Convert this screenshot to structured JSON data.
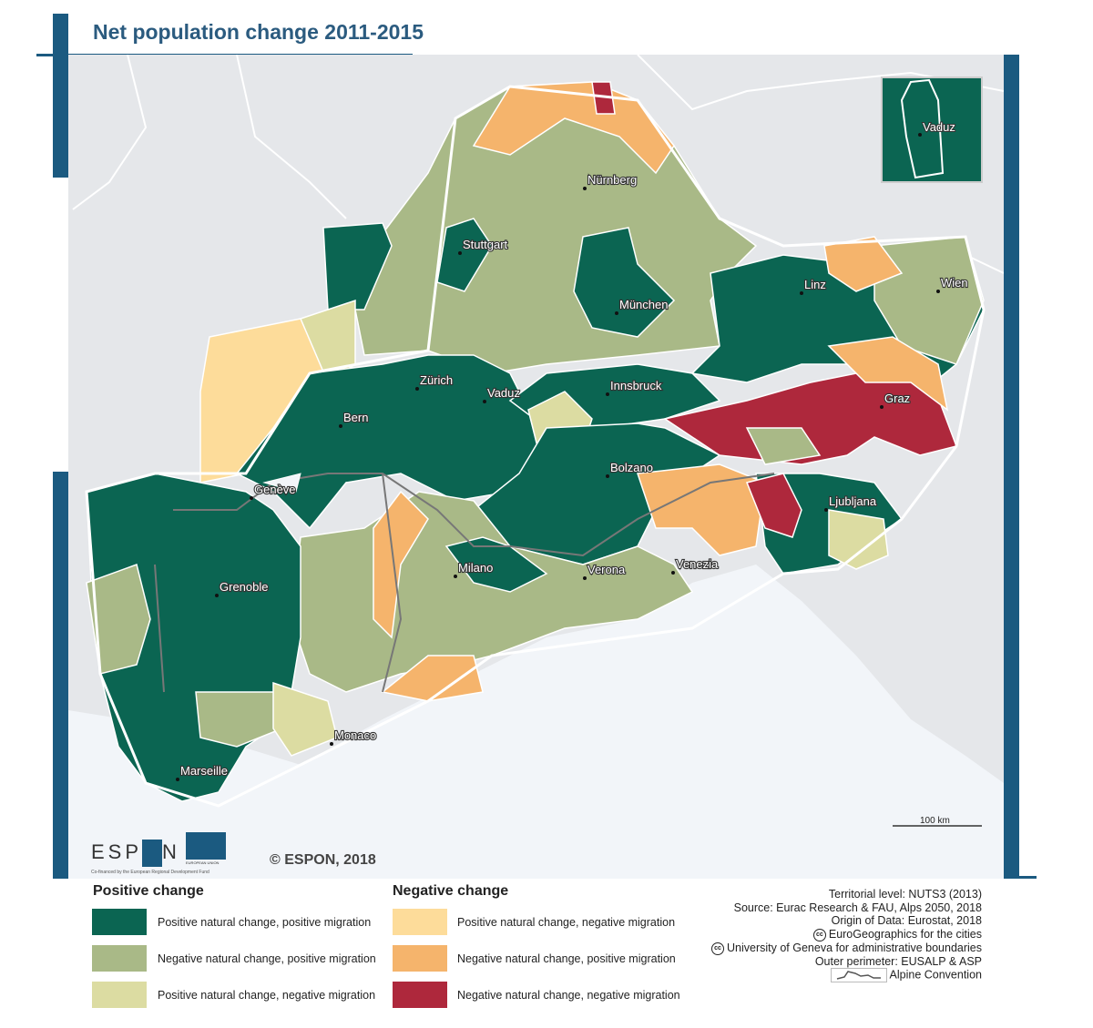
{
  "title": "Net population change 2011-2015",
  "colors": {
    "frame": "#1b5a80",
    "positive_natural_positive_migration": "#0b6552",
    "negative_natural_positive_migration": "#a9b987",
    "positive_natural_negative_migration": "#dcdca2",
    "neg_positive_natural_negative_migration": "#fddc9a",
    "neg_negative_natural_positive_migration": "#f5b46c",
    "negative_natural_negative_migration": "#ae283c"
  },
  "cities": [
    "Nürnberg",
    "Stuttgart",
    "München",
    "Linz",
    "Wien",
    "Zürich",
    "Vaduz",
    "Innsbruck",
    "Bern",
    "Graz",
    "Bolzano",
    "Ljubljana",
    "Genève",
    "Milano",
    "Verona",
    "Venezia",
    "Grenoble",
    "Monaco",
    "Marseille"
  ],
  "inset_label": "Vaduz",
  "scale_bar": "100 km",
  "copyright": "© ESPON, 2018",
  "logo": {
    "espon": "ESPON",
    "eu": "EUROPEAN UNION",
    "cofinanced": "Co-financed by the European Regional Development Fund"
  },
  "legend": {
    "positive_title": "Positive change",
    "negative_title": "Negative change",
    "positive": [
      "Positive natural change, positive migration",
      "Negative natural change, positive migration",
      "Positive natural change, negative migration"
    ],
    "negative": [
      "Positive natural change, negative migration",
      "Negative natural change, positive migration",
      "Negative natural change, negative migration"
    ]
  },
  "credits": [
    "Territorial level: NUTS3 (2013)",
    "Source: Eurac Research & FAU, Alps 2050, 2018",
    "Origin of Data: Eurostat, 2018",
    "EuroGeographics for the cities",
    "University of Geneva for administrative boundaries",
    "Outer perimeter: EUSALP & ASP",
    "Alpine Convention"
  ]
}
